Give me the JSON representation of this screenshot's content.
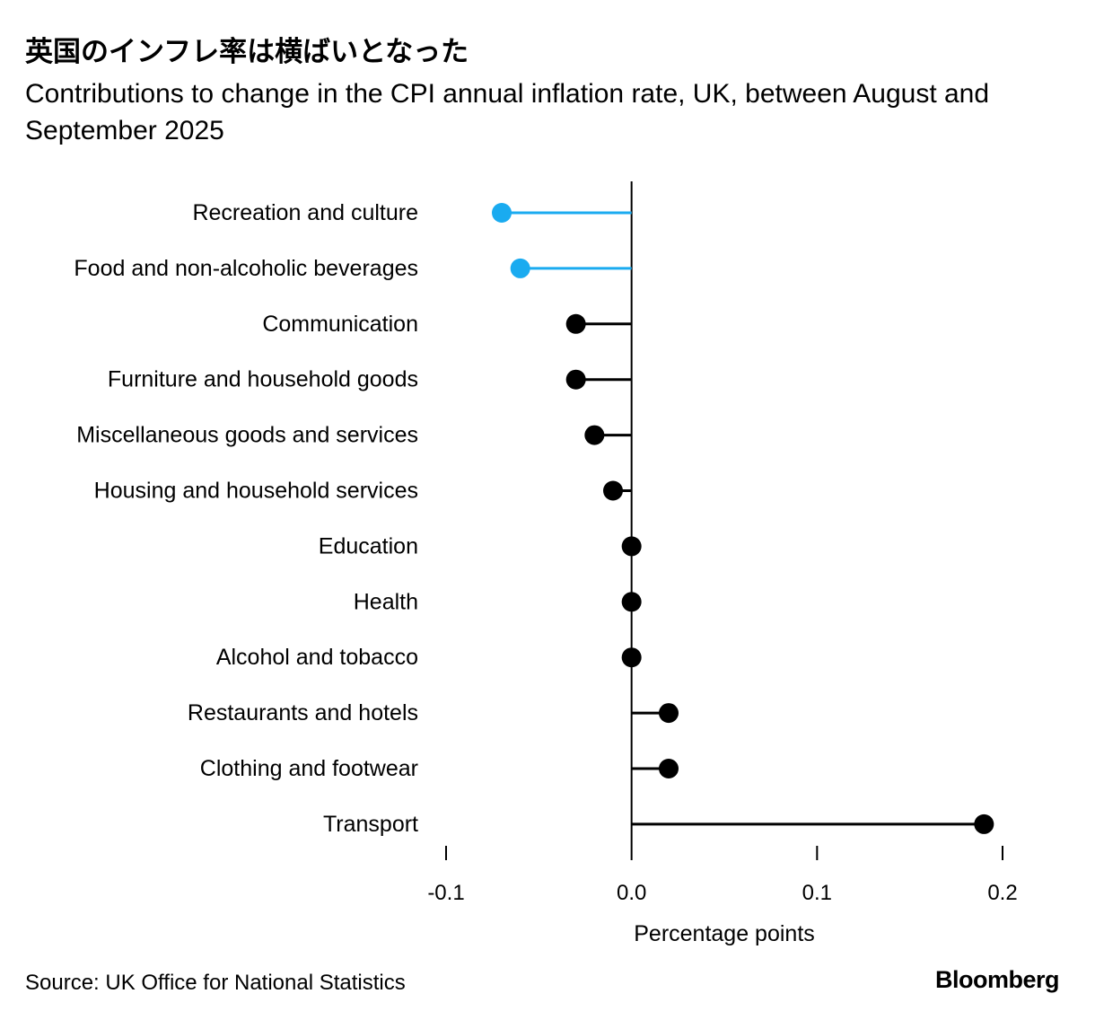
{
  "title": "英国のインフレ率は横ばいとなった",
  "subtitle": "Contributions to change in the CPI annual inflation rate, UK, between August and September 2025",
  "source": "Source: UK Office for National Statistics",
  "brand": "Bloomberg",
  "colors": {
    "highlight": "#1aabf0",
    "default": "#000000"
  },
  "chart_data": {
    "type": "lollipop",
    "xlabel": "Percentage points",
    "xlim": [
      -0.1,
      0.2
    ],
    "xticks": [
      -0.1,
      0.0,
      0.1,
      0.2
    ],
    "xtick_labels": [
      "-0.1",
      "0.0",
      "0.1",
      "0.2"
    ],
    "categories": [
      "Recreation and culture",
      "Food and non-alcoholic beverages",
      "Communication",
      "Furniture and household goods",
      "Miscellaneous goods and services",
      "Housing and household services",
      "Education",
      "Health",
      "Alcohol and tobacco",
      "Restaurants and hotels",
      "Clothing and footwear",
      "Transport"
    ],
    "values": [
      -0.07,
      -0.06,
      -0.03,
      -0.03,
      -0.02,
      -0.01,
      0.0,
      0.0,
      0.0,
      0.02,
      0.02,
      0.19
    ],
    "highlighted": [
      true,
      true,
      false,
      false,
      false,
      false,
      false,
      false,
      false,
      false,
      false,
      false
    ]
  }
}
